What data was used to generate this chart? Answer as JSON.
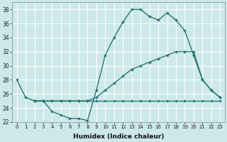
{
  "xlabel": "Humidex (Indice chaleur)",
  "xlim": [
    -0.5,
    23.5
  ],
  "ylim": [
    22,
    39
  ],
  "xticks": [
    0,
    1,
    2,
    3,
    4,
    5,
    6,
    7,
    8,
    9,
    10,
    11,
    12,
    13,
    14,
    15,
    16,
    17,
    18,
    19,
    20,
    21,
    22,
    23
  ],
  "yticks": [
    22,
    24,
    26,
    28,
    30,
    32,
    34,
    36,
    38
  ],
  "bg_color": "#cce8e8",
  "grid_color": "#ffffff",
  "line_color": "#1a6b6b",
  "line1_x": [
    0,
    1,
    2,
    3,
    4,
    5,
    6,
    7,
    8,
    9,
    10,
    11,
    12,
    13,
    14,
    15,
    16,
    17,
    18,
    19,
    20,
    21,
    22,
    23
  ],
  "line1_y": [
    28,
    25.5,
    25,
    25,
    23.5,
    23,
    22.5,
    22.5,
    22.2,
    26.5,
    31.5,
    34.0,
    36.2,
    38.0,
    38.0,
    37.0,
    36.5,
    37.5,
    36.5,
    35.0,
    31.5,
    28.0,
    26.5,
    25.5
  ],
  "line2_x": [
    2,
    3,
    4,
    5,
    6,
    7,
    8,
    9,
    10,
    11,
    12,
    13,
    14,
    15,
    16,
    17,
    18,
    19,
    20,
    21,
    22,
    23
  ],
  "line2_y": [
    25,
    25,
    25,
    25,
    25,
    25,
    25,
    25.5,
    26.5,
    27.5,
    28.5,
    29.5,
    30.0,
    30.5,
    31.0,
    31.5,
    32.0,
    32.0,
    32.0,
    28.0,
    26.5,
    25.5
  ],
  "line3_x": [
    2,
    3,
    4,
    5,
    6,
    7,
    8,
    9,
    10,
    11,
    12,
    13,
    14,
    15,
    16,
    17,
    18,
    19,
    20,
    21,
    22,
    23
  ],
  "line3_y": [
    25,
    25,
    25,
    25,
    25,
    25,
    25,
    25,
    25,
    25,
    25,
    25,
    25,
    25,
    25,
    25,
    25,
    25,
    25,
    25,
    25,
    25
  ]
}
